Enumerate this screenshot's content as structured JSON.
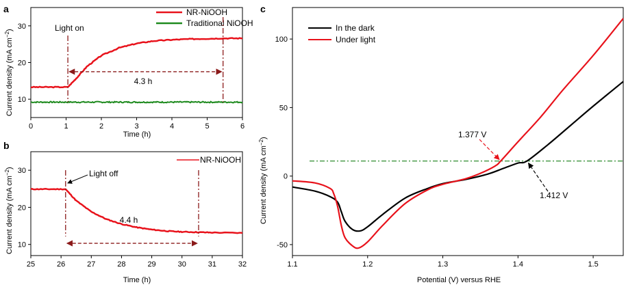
{
  "colors": {
    "red": "#e8121b",
    "green": "#1e8a1e",
    "black": "#000000",
    "darkred": "#8b1a1a",
    "dashgreen": "#2e8b2e"
  },
  "chart_data": [
    {
      "panel": "a",
      "type": "line",
      "xlabel": "Time (h)",
      "ylabel": "Current density (mA cm−2)",
      "xlim": [
        0,
        6
      ],
      "ylim": [
        5,
        35
      ],
      "xticks": [
        0,
        1,
        2,
        3,
        4,
        5,
        6
      ],
      "yticks": [
        10,
        20,
        30
      ],
      "legend_position": "top-right",
      "series": [
        {
          "name": "NR-NiOOH",
          "color": "#e8121b",
          "x": [
            0,
            0.5,
            1.05,
            1.3,
            1.6,
            2.0,
            2.5,
            3.0,
            3.5,
            4.0,
            4.5,
            5.0,
            5.5,
            6.0
          ],
          "y": [
            13.3,
            13.3,
            13.3,
            15.8,
            19.0,
            21.9,
            24.0,
            25.2,
            25.9,
            26.2,
            26.4,
            26.5,
            26.6,
            26.6
          ]
        },
        {
          "name": "Traditional NiOOH",
          "color": "#1e8a1e",
          "x": [
            0,
            1,
            2,
            3,
            4,
            5,
            6
          ],
          "y": [
            9.2,
            9.2,
            9.2,
            9.2,
            9.2,
            9.2,
            9.2
          ]
        }
      ],
      "annotations": [
        {
          "text": "Light on",
          "x": 1.05
        },
        {
          "text": "4.3 h",
          "x_start": 1.05,
          "x_end": 5.45,
          "y": 17.5
        }
      ]
    },
    {
      "panel": "b",
      "type": "line",
      "xlabel": "Time (h)",
      "ylabel": "Current density (mA cm−2)",
      "xlim": [
        25,
        32
      ],
      "ylim": [
        7,
        35
      ],
      "xticks": [
        25,
        26,
        27,
        28,
        29,
        30,
        31,
        32
      ],
      "yticks": [
        10,
        20,
        30
      ],
      "legend_position": "top-right",
      "series": [
        {
          "name": "NR-NiOOH",
          "color": "#e8121b",
          "x": [
            25,
            25.5,
            26.15,
            26.5,
            27.0,
            27.5,
            28.0,
            28.5,
            29.0,
            29.5,
            30.0,
            30.5,
            31.0,
            32.0
          ],
          "y": [
            24.9,
            24.9,
            24.9,
            21.8,
            18.8,
            16.8,
            15.5,
            14.6,
            14.0,
            13.6,
            13.4,
            13.3,
            13.2,
            13.1
          ]
        }
      ],
      "annotations": [
        {
          "text": "Light off",
          "x": 26.15
        },
        {
          "text": "4.4 h",
          "x_start": 26.15,
          "x_end": 30.55,
          "y": 10.3
        }
      ]
    },
    {
      "panel": "c",
      "type": "line",
      "xlabel": "Potential (V) versus RHE",
      "ylabel": "Current density (mA cm−2)",
      "xlim": [
        1.1,
        1.54
      ],
      "ylim": [
        -58,
        123
      ],
      "xticks": [
        1.1,
        1.2,
        1.3,
        1.4,
        1.5
      ],
      "yticks": [
        -50,
        0,
        50,
        100
      ],
      "legend_position": "top-left",
      "reference_line_y": 11,
      "series": [
        {
          "name": "In the dark",
          "color": "#000000",
          "x": [
            1.1,
            1.13,
            1.15,
            1.16,
            1.165,
            1.17,
            1.18,
            1.19,
            1.2,
            1.22,
            1.25,
            1.28,
            1.3,
            1.33,
            1.36,
            1.38,
            1.4,
            1.412,
            1.44,
            1.47,
            1.5,
            1.54
          ],
          "y": [
            -8,
            -11,
            -15,
            -19,
            -26,
            -33,
            -39,
            -40,
            -37,
            -28,
            -16,
            -9,
            -5.5,
            -2.5,
            1.5,
            5.5,
            9.5,
            11,
            23,
            37,
            51,
            69
          ]
        },
        {
          "name": "Under light",
          "color": "#e8121b",
          "x": [
            1.1,
            1.13,
            1.15,
            1.155,
            1.16,
            1.165,
            1.17,
            1.18,
            1.188,
            1.2,
            1.22,
            1.25,
            1.28,
            1.3,
            1.33,
            1.35,
            1.37,
            1.377,
            1.4,
            1.43,
            1.46,
            1.5,
            1.54
          ],
          "y": [
            -3.5,
            -5,
            -9,
            -13,
            -22,
            -36,
            -45,
            -51,
            -52.5,
            -48,
            -36,
            -20,
            -10,
            -6,
            -2,
            2,
            7.5,
            11,
            25,
            43,
            63,
            88,
            115
          ]
        }
      ],
      "annotations": [
        {
          "text": "1.377 V",
          "x": 1.377,
          "y": 11
        },
        {
          "text": "1.412 V",
          "x": 1.412,
          "y": 11
        }
      ]
    }
  ],
  "panel_labels": {
    "a": "a",
    "b": "b",
    "c": "c"
  },
  "axis_labels": {
    "a_y_main": "Current density (mA cm",
    "a_y_sup": "−2",
    "a_y_end": ")",
    "a_x": "Time (h)",
    "b_y_main": "Current density (mA cm",
    "b_y_sup": "−2",
    "b_y_end": ")",
    "b_x": "Time (h)",
    "c_y_main": "Current density (mA cm",
    "c_y_sup": "−2",
    "c_y_end": ")",
    "c_x": "Potential (V) versus RHE"
  },
  "legend": {
    "a": [
      "NR-NiOOH",
      "Traditional NiOOH"
    ],
    "b": [
      "NR-NiOOH"
    ],
    "c": [
      "In the dark",
      "Under light"
    ]
  },
  "annotations_text": {
    "light_on": "Light on",
    "light_off": "Light off",
    "dur_a": "4.3 h",
    "dur_b": "4.4 h",
    "v1": "1.377 V",
    "v2": "1.412 V"
  }
}
